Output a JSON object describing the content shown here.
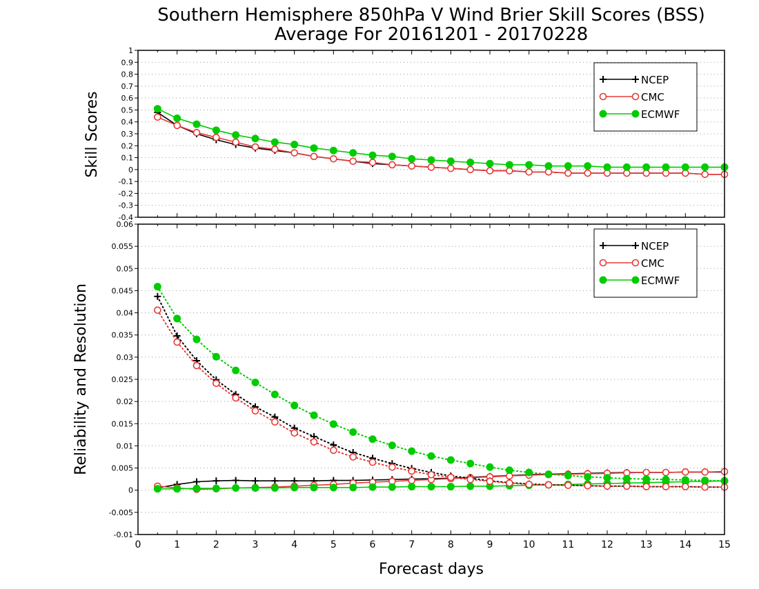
{
  "title_line1": "Southern Hemisphere 850hPa V Wind Brier Skill Scores (BSS)",
  "title_line2": "Average For 20161201 - 20170228",
  "xlabel": "Forecast days",
  "colors": {
    "NCEP": "#000000",
    "CMC": "#e83838",
    "ECMWF": "#00cc00",
    "grid": "#999999"
  },
  "chart_data": [
    {
      "type": "line",
      "ylabel": "Skill Scores",
      "xlim": [
        0,
        15
      ],
      "ylim": [
        -0.4,
        1
      ],
      "x_ticks": [
        0,
        1,
        2,
        3,
        4,
        5,
        6,
        7,
        8,
        9,
        10,
        11,
        12,
        13,
        14,
        15
      ],
      "y_ticks": [
        "-0.4",
        "-0.3",
        "-0.2",
        "-0.1",
        "0",
        "0.1",
        "0.2",
        "0.3",
        "0.4",
        "0.5",
        "0.6",
        "0.7",
        "0.8",
        "0.9",
        "1"
      ],
      "legend": {
        "placement": "top-right",
        "entries": [
          "NCEP",
          "CMC",
          "ECMWF"
        ]
      },
      "x": [
        0.5,
        1,
        1.5,
        2,
        2.5,
        3,
        3.5,
        4,
        4.5,
        5,
        5.5,
        6,
        6.5,
        7,
        7.5,
        8,
        8.5,
        9,
        9.5,
        10,
        10.5,
        11,
        11.5,
        12,
        12.5,
        13,
        13.5,
        14,
        14.5,
        15
      ],
      "series": [
        {
          "name": "NCEP",
          "marker": "plus",
          "line": "solid",
          "values": [
            0.48,
            0.37,
            0.3,
            0.25,
            0.21,
            0.18,
            0.16,
            0.14,
            0.11,
            0.09,
            0.07,
            0.05,
            0.04,
            0.03,
            0.02,
            0.01,
            0.0,
            -0.01,
            -0.01,
            -0.02,
            -0.02,
            -0.03,
            -0.03,
            -0.03,
            -0.03,
            -0.03,
            -0.03,
            -0.03,
            -0.04,
            -0.04
          ]
        },
        {
          "name": "CMC",
          "marker": "open-circle",
          "line": "solid",
          "values": [
            0.44,
            0.37,
            0.31,
            0.27,
            0.23,
            0.19,
            0.17,
            0.14,
            0.11,
            0.09,
            0.07,
            0.06,
            0.04,
            0.03,
            0.02,
            0.01,
            0.0,
            -0.01,
            -0.01,
            -0.02,
            -0.02,
            -0.03,
            -0.03,
            -0.03,
            -0.03,
            -0.03,
            -0.03,
            -0.03,
            -0.04,
            -0.04
          ]
        },
        {
          "name": "ECMWF",
          "marker": "filled-circle",
          "line": "solid",
          "values": [
            0.51,
            0.43,
            0.38,
            0.33,
            0.29,
            0.26,
            0.23,
            0.21,
            0.18,
            0.16,
            0.14,
            0.12,
            0.11,
            0.09,
            0.08,
            0.07,
            0.06,
            0.05,
            0.04,
            0.04,
            0.03,
            0.03,
            0.03,
            0.02,
            0.02,
            0.02,
            0.02,
            0.02,
            0.02,
            0.02
          ]
        }
      ]
    },
    {
      "type": "line",
      "ylabel": "Reliability and Resolution",
      "xlim": [
        0,
        15
      ],
      "ylim": [
        -0.01,
        0.06
      ],
      "x_ticks": [
        0,
        1,
        2,
        3,
        4,
        5,
        6,
        7,
        8,
        9,
        10,
        11,
        12,
        13,
        14,
        15
      ],
      "y_ticks": [
        "-0.01",
        "-0.005",
        "0",
        "0.005",
        "0.01",
        "0.015",
        "0.02",
        "0.025",
        "0.03",
        "0.035",
        "0.04",
        "0.045",
        "0.05",
        "0.055",
        "0.06"
      ],
      "legend": {
        "placement": "top-right",
        "entries": [
          "NCEP",
          "CMC",
          "ECMWF"
        ]
      },
      "x": [
        0.5,
        1,
        1.5,
        2,
        2.5,
        3,
        3.5,
        4,
        4.5,
        5,
        5.5,
        6,
        6.5,
        7,
        7.5,
        8,
        8.5,
        9,
        9.5,
        10,
        10.5,
        11,
        11.5,
        12,
        12.5,
        13,
        13.5,
        14,
        14.5,
        15
      ],
      "series": [
        {
          "name": "NCEP",
          "kind": "reliability",
          "marker": "plus",
          "line": "solid",
          "values": [
            0.0005,
            0.0013,
            0.0019,
            0.0021,
            0.0022,
            0.0021,
            0.0021,
            0.0021,
            0.0021,
            0.0022,
            0.0022,
            0.0023,
            0.0024,
            0.0025,
            0.0026,
            0.0027,
            0.0029,
            0.0031,
            0.0033,
            0.0035,
            0.0036,
            0.0037,
            0.0038,
            0.0039,
            0.004,
            0.004,
            0.004,
            0.0041,
            0.0041,
            0.0041
          ]
        },
        {
          "name": "CMC",
          "kind": "reliability",
          "marker": "open-circle",
          "line": "solid",
          "values": [
            0.0009,
            0.0005,
            0.0002,
            0.0003,
            0.0005,
            0.0006,
            0.0007,
            0.0009,
            0.0011,
            0.0013,
            0.0016,
            0.0018,
            0.002,
            0.0022,
            0.0024,
            0.0026,
            0.0028,
            0.003,
            0.0032,
            0.0034,
            0.0035,
            0.0036,
            0.0037,
            0.0038,
            0.0039,
            0.004,
            0.004,
            0.0041,
            0.0041,
            0.0042
          ]
        },
        {
          "name": "ECMWF",
          "kind": "reliability",
          "marker": "filled-circle",
          "line": "solid",
          "values": [
            0.0003,
            0.0003,
            0.0004,
            0.0004,
            0.0005,
            0.0005,
            0.0005,
            0.0006,
            0.0006,
            0.0006,
            0.0006,
            0.0007,
            0.0007,
            0.0008,
            0.0008,
            0.0008,
            0.0009,
            0.0009,
            0.001,
            0.0011,
            0.0012,
            0.0013,
            0.0014,
            0.0015,
            0.0016,
            0.0017,
            0.0018,
            0.0019,
            0.002,
            0.0021
          ]
        },
        {
          "name": "NCEP",
          "kind": "resolution",
          "marker": "plus",
          "line": "dotted",
          "values": [
            0.0437,
            0.0348,
            0.0292,
            0.0249,
            0.0216,
            0.0188,
            0.0165,
            0.014,
            0.0121,
            0.0102,
            0.0085,
            0.0072,
            0.006,
            0.0049,
            0.004,
            0.0032,
            0.0027,
            0.0021,
            0.0017,
            0.0014,
            0.0012,
            0.0011,
            0.001,
            0.0009,
            0.0009,
            0.0008,
            0.0008,
            0.0008,
            0.0007,
            0.0007
          ]
        },
        {
          "name": "CMC",
          "kind": "resolution",
          "marker": "open-circle",
          "line": "dotted",
          "values": [
            0.0406,
            0.0334,
            0.0281,
            0.0241,
            0.0208,
            0.0179,
            0.0154,
            0.0129,
            0.0109,
            0.009,
            0.0075,
            0.0063,
            0.0052,
            0.0043,
            0.0035,
            0.0029,
            0.0024,
            0.002,
            0.0016,
            0.0013,
            0.0012,
            0.0011,
            0.001,
            0.0009,
            0.0009,
            0.0008,
            0.0008,
            0.0008,
            0.0007,
            0.0007
          ]
        },
        {
          "name": "ECMWF",
          "kind": "resolution",
          "marker": "filled-circle",
          "line": "dotted",
          "values": [
            0.0459,
            0.0387,
            0.034,
            0.0301,
            0.027,
            0.0243,
            0.0216,
            0.0191,
            0.0169,
            0.0149,
            0.0131,
            0.0115,
            0.0101,
            0.0088,
            0.0077,
            0.0068,
            0.006,
            0.0052,
            0.0045,
            0.004,
            0.0036,
            0.0033,
            0.003,
            0.0028,
            0.0026,
            0.0025,
            0.0024,
            0.0023,
            0.0022,
            0.0021
          ]
        }
      ]
    }
  ]
}
